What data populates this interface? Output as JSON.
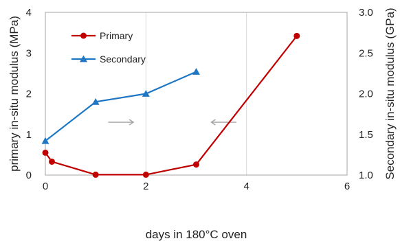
{
  "chart_data": {
    "type": "line",
    "xlabel": "days in 180°C oven",
    "ylabel_left": "primary in-situ modulus (MPa)",
    "ylabel_right": "Secondary in-situ modulus (GPa)",
    "xlim": [
      0,
      6
    ],
    "ylim_left": [
      0,
      4
    ],
    "ylim_right": [
      1.0,
      3.0
    ],
    "x_ticks": [
      "0",
      "2",
      "4",
      "6"
    ],
    "y_left_ticks": [
      "0",
      "1",
      "2",
      "3",
      "4"
    ],
    "y_right_ticks": [
      "1.0",
      "1.5",
      "2.0",
      "2.5",
      "3.0"
    ],
    "grid": "vertical",
    "legend_position": "top-left",
    "series": [
      {
        "name": "Primary",
        "axis": "left",
        "color": "#c00000",
        "marker": "circle",
        "x": [
          0,
          0.13,
          1,
          2,
          3,
          5
        ],
        "y": [
          0.55,
          0.33,
          0.01,
          0.01,
          0.26,
          3.42
        ]
      },
      {
        "name": "Secondary",
        "axis": "right",
        "color": "#1f77c4",
        "marker": "triangle",
        "x": [
          0,
          1,
          2,
          3
        ],
        "y": [
          1.42,
          1.9,
          2.0,
          2.27
        ]
      }
    ],
    "annotations": [
      {
        "type": "arrow",
        "direction": "right",
        "color": "#a6a6a6",
        "x_from": 1.25,
        "x_to": 1.75,
        "y_left": 1.3
      },
      {
        "type": "arrow",
        "direction": "left",
        "color": "#a6a6a6",
        "x_from": 3.8,
        "x_to": 3.3,
        "y_left": 1.3
      }
    ]
  }
}
